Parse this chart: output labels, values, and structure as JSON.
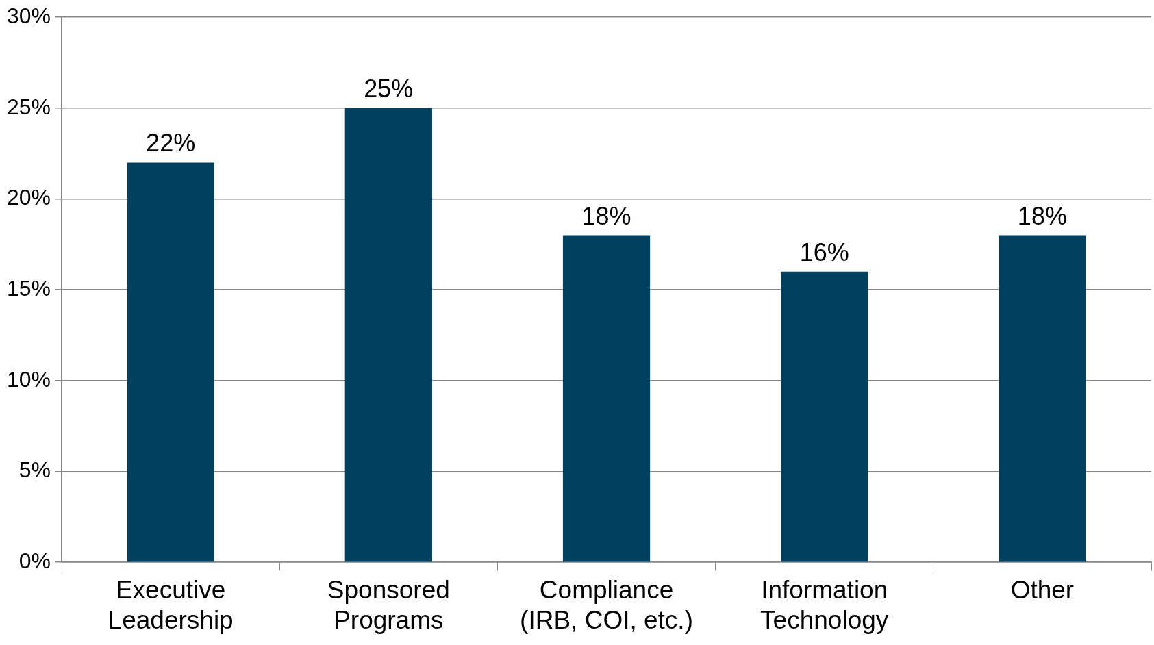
{
  "chart_data": {
    "type": "bar",
    "categories": [
      "Executive Leadership",
      "Sponsored Programs",
      "Compliance (IRB, COI, etc.)",
      "Information Technology",
      "Other"
    ],
    "values": [
      22,
      25,
      18,
      16,
      18
    ],
    "color": "#02405f",
    "ylim": [
      0,
      30
    ],
    "yticks": [
      {
        "value": 0,
        "label": "0%"
      },
      {
        "value": 5,
        "label": "5%"
      },
      {
        "value": 10,
        "label": "10%"
      },
      {
        "value": 15,
        "label": "15%"
      },
      {
        "value": 20,
        "label": "20%"
      },
      {
        "value": 25,
        "label": "25%"
      },
      {
        "value": 30,
        "label": "30%"
      }
    ],
    "value_labels": [
      "22%",
      "25%",
      "18%",
      "16%",
      "18%"
    ],
    "grid": "y",
    "legend": false
  }
}
